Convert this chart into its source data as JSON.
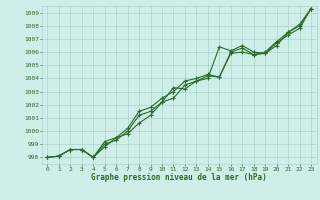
{
  "line1": [
    998.0,
    998.1,
    998.6,
    998.6,
    998.0,
    998.8,
    999.5,
    999.8,
    1000.6,
    1001.2,
    1002.2,
    1003.3,
    1003.2,
    1003.8,
    1004.0,
    1006.4,
    1006.1,
    1006.5,
    1006.0,
    1005.9,
    1006.5,
    1007.5,
    1008.1,
    1009.3
  ],
  "line2": [
    998.0,
    998.1,
    998.6,
    998.6,
    998.0,
    999.2,
    999.5,
    1000.2,
    1001.5,
    1001.8,
    1002.5,
    1003.0,
    1003.8,
    1004.0,
    1004.3,
    1004.1,
    1006.0,
    1006.3,
    1005.8,
    1006.0,
    1006.8,
    1007.5,
    1008.0,
    1009.3
  ],
  "line3": [
    998.0,
    998.1,
    998.6,
    998.6,
    998.0,
    999.0,
    999.3,
    1000.0,
    1001.2,
    1001.5,
    1002.2,
    1002.5,
    1003.5,
    1003.8,
    1004.2,
    1004.1,
    1005.9,
    1006.0,
    1005.8,
    1005.9,
    1006.7,
    1007.3,
    1007.8,
    1009.3
  ],
  "x": [
    0,
    1,
    2,
    3,
    4,
    5,
    6,
    7,
    8,
    9,
    10,
    11,
    12,
    13,
    14,
    15,
    16,
    17,
    18,
    19,
    20,
    21,
    22,
    23
  ],
  "ylim": [
    997.5,
    1009.5
  ],
  "yticks": [
    998,
    999,
    1000,
    1001,
    1002,
    1003,
    1004,
    1005,
    1006,
    1007,
    1008,
    1009
  ],
  "xticks": [
    0,
    1,
    2,
    3,
    4,
    5,
    6,
    7,
    8,
    9,
    10,
    11,
    12,
    13,
    14,
    15,
    16,
    17,
    18,
    19,
    20,
    21,
    22,
    23
  ],
  "line_color": "#2d6a2d",
  "bg_color": "#ceeee8",
  "grid_color": "#aad4cc",
  "xlabel": "Graphe pression niveau de la mer (hPa)",
  "xlabel_color": "#2d6a2d",
  "tick_color": "#2d6a2d",
  "marker": "+",
  "markersize": 3,
  "linewidth": 0.8
}
